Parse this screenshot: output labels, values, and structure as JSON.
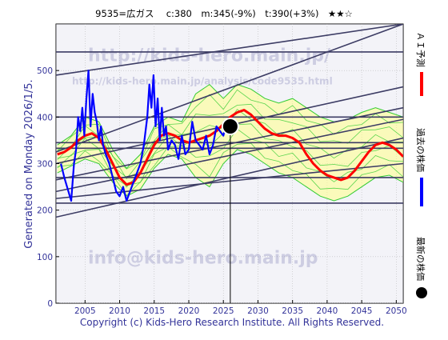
{
  "header": "9535=広ガス　 c:380　m:345(-9%)　t:390(+3%)　★★☆",
  "side_label": "Generated on Monday 2026/1/5.",
  "footer": "Copyright (c) Kids-Hero Research Institute. All Rights Reserved.",
  "watermarks": [
    "http://kids-hero.main.jp/",
    "http://kids-hero.main.jp/analysis/code9535.html",
    "info@kids-hero.main.jp"
  ],
  "legend": [
    {
      "label": "ＡＩ予測",
      "color": "#ff0000",
      "marker": "line"
    },
    {
      "label": "過去の株価",
      "color": "#0000ff",
      "marker": "line"
    },
    {
      "label": "最新の株価",
      "color": "#000000",
      "marker": "dot"
    }
  ],
  "colors": {
    "prediction": "#ff0000",
    "history": "#0000ff",
    "band_fill": "#ffff88",
    "band_lines": "#33cc33",
    "trend_lines": "#3c3c64",
    "plot_bg": "#dcdcec",
    "text": "#333399"
  },
  "chart_data": {
    "type": "line",
    "xlim": [
      2000.8,
      2051
    ],
    "ylim": [
      0,
      600
    ],
    "x_ticks": [
      2005,
      2010,
      2015,
      2020,
      2025,
      2030,
      2035,
      2040,
      2045,
      2050
    ],
    "y_ticks": [
      0,
      100,
      200,
      300,
      400,
      500
    ],
    "grid": true,
    "latest": {
      "x": 2026.0,
      "y": 380
    },
    "horizontal_lines": [
      540,
      400,
      345,
      333,
      270,
      215
    ],
    "trend_lines": [
      {
        "from": [
          2000.8,
          490
        ],
        "to": [
          2051,
          600
        ]
      },
      {
        "from": [
          2000.8,
          325
        ],
        "to": [
          2051,
          600
        ]
      },
      {
        "from": [
          2000.8,
          300
        ],
        "to": [
          2051,
          465
        ]
      },
      {
        "from": [
          2000.8,
          265
        ],
        "to": [
          2051,
          420
        ]
      },
      {
        "from": [
          2000.8,
          240
        ],
        "to": [
          2051,
          395
        ]
      },
      {
        "from": [
          2000.8,
          225
        ],
        "to": [
          2051,
          300
        ]
      },
      {
        "from": [
          2000.8,
          185
        ],
        "to": [
          2051,
          355
        ]
      }
    ],
    "series": [
      {
        "role": "history",
        "x": [
          2001.5,
          2002.0,
          2002.5,
          2003.0,
          2003.4,
          2003.7,
          2004.0,
          2004.3,
          2004.6,
          2004.9,
          2005.2,
          2005.5,
          2005.8,
          2006.1,
          2006.4,
          2006.7,
          2007.0,
          2007.3,
          2007.6,
          2008.0,
          2008.5,
          2009.0,
          2009.5,
          2010.0,
          2010.5,
          2011.0,
          2011.5,
          2012.0,
          2012.5,
          2013.0,
          2013.5,
          2014.0,
          2014.3,
          2014.6,
          2014.9,
          2015.2,
          2015.5,
          2015.8,
          2016.1,
          2016.4,
          2016.7,
          2017.0,
          2017.5,
          2018.0,
          2018.5,
          2019.0,
          2019.5,
          2020.0,
          2020.5,
          2021.0,
          2021.5,
          2022.0,
          2022.5,
          2023.0,
          2023.5,
          2024.0,
          2024.5,
          2025.0,
          2025.5,
          2026.0
        ],
        "y": [
          300,
          270,
          245,
          220,
          300,
          330,
          400,
          370,
          420,
          360,
          440,
          500,
          380,
          450,
          410,
          390,
          350,
          380,
          340,
          320,
          300,
          270,
          240,
          230,
          250,
          220,
          240,
          260,
          280,
          300,
          340,
          400,
          470,
          420,
          490,
          380,
          440,
          350,
          420,
          360,
          380,
          330,
          350,
          340,
          310,
          360,
          320,
          330,
          390,
          350,
          340,
          330,
          360,
          320,
          340,
          380,
          370,
          360,
          390,
          380
        ]
      },
      {
        "role": "prediction",
        "x": [
          2001,
          2002,
          2003,
          2004,
          2005,
          2006,
          2007,
          2008,
          2009,
          2010,
          2011,
          2012,
          2013,
          2014,
          2015,
          2016,
          2017,
          2018,
          2019,
          2020,
          2021,
          2022,
          2023,
          2024,
          2025,
          2026,
          2027,
          2028,
          2029,
          2030,
          2031,
          2032,
          2033,
          2034,
          2035,
          2036,
          2037,
          2038,
          2039,
          2040,
          2041,
          2042,
          2043,
          2044,
          2045,
          2046,
          2047,
          2048,
          2049,
          2050,
          2051
        ],
        "y": [
          320,
          325,
          335,
          350,
          360,
          365,
          355,
          330,
          300,
          270,
          255,
          260,
          280,
          310,
          340,
          360,
          365,
          360,
          350,
          345,
          350,
          355,
          360,
          370,
          385,
          400,
          410,
          415,
          405,
          390,
          375,
          365,
          360,
          360,
          355,
          345,
          320,
          300,
          285,
          275,
          270,
          265,
          270,
          285,
          305,
          325,
          340,
          345,
          340,
          330,
          315
        ]
      },
      {
        "role": "band-upper",
        "x": [
          2001,
          2003,
          2005,
          2007,
          2009,
          2011,
          2013,
          2015,
          2017,
          2019,
          2021,
          2023,
          2025,
          2027,
          2029,
          2031,
          2033,
          2035,
          2037,
          2039,
          2041,
          2043,
          2045,
          2047,
          2049,
          2051
        ],
        "y": [
          340,
          360,
          400,
          390,
          330,
          290,
          320,
          380,
          400,
          390,
          450,
          470,
          440,
          470,
          460,
          440,
          430,
          440,
          420,
          400,
          390,
          395,
          410,
          420,
          410,
          400
        ]
      },
      {
        "role": "band-lower",
        "x": [
          2001,
          2003,
          2005,
          2007,
          2009,
          2011,
          2013,
          2015,
          2017,
          2019,
          2021,
          2023,
          2025,
          2027,
          2029,
          2031,
          2033,
          2035,
          2037,
          2039,
          2041,
          2043,
          2045,
          2047,
          2049,
          2051
        ],
        "y": [
          280,
          295,
          310,
          300,
          260,
          230,
          245,
          290,
          320,
          310,
          270,
          250,
          300,
          330,
          320,
          300,
          280,
          270,
          250,
          230,
          220,
          230,
          250,
          270,
          275,
          260
        ]
      }
    ]
  }
}
